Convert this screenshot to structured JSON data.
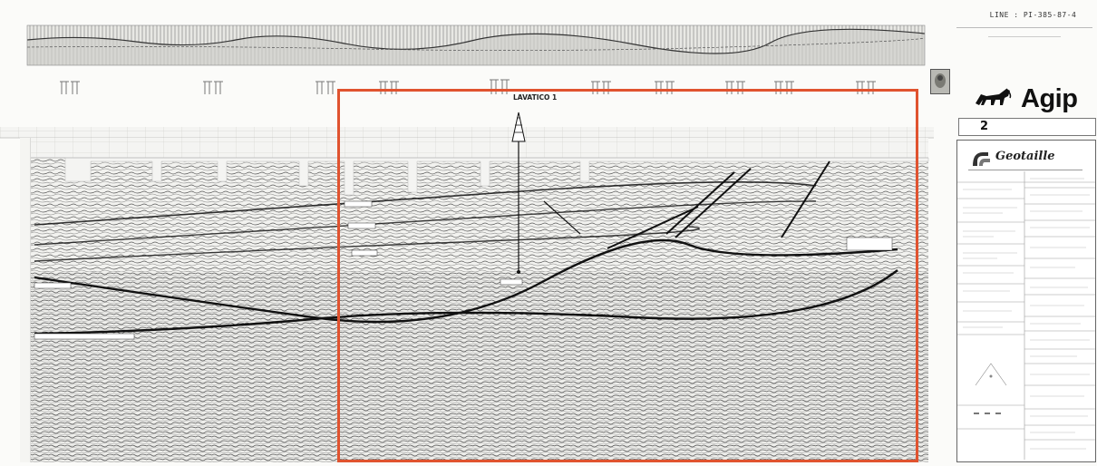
{
  "section": {
    "well_label": "LAVATICO 1"
  },
  "right_panel": {
    "line_title": "LINE : PI-385-87-4",
    "company_logo_text": "Agip",
    "sheet_number": "2",
    "contractor_logo_text": "Geotaille"
  },
  "colors": {
    "highlight_border": "#e0532f",
    "seismic_ink": "#3a3a3a",
    "paper": "#fbfbf9",
    "horizon_line": "#111111"
  },
  "icons": {
    "well_symbol": "derrick-icon",
    "company_logo": "six-legged-dog-icon",
    "stamp": "stamp-icon"
  }
}
